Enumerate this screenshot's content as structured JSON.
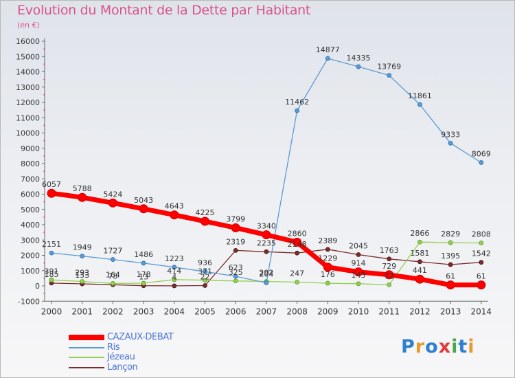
{
  "title": "Evolution du Montant de la Dette par Habitant",
  "subtitle": "(en €)",
  "logo": {
    "letters": [
      "P",
      "r",
      "o",
      "x",
      "i",
      "t",
      "i"
    ],
    "colors": [
      "#2f7fd0",
      "#e79a2b",
      "#2f7fd0",
      "#e03a3a",
      "#4aa84a",
      "#2f7fd0",
      "#e79a2b"
    ]
  },
  "chart_data": {
    "type": "line",
    "title": "Evolution du Montant de la Dette par Habitant",
    "subtitle": "(en €)",
    "xlabel": "",
    "ylabel": "",
    "ylim": [
      -1000,
      16000
    ],
    "yticks": [
      -1000,
      0,
      1000,
      2000,
      3000,
      4000,
      5000,
      6000,
      7000,
      8000,
      9000,
      10000,
      11000,
      12000,
      13000,
      14000,
      15000,
      16000
    ],
    "grid": false,
    "legend": "bottom-left",
    "x": [
      "2000",
      "2001",
      "2002",
      "2003",
      "2004",
      "2005",
      "2006",
      "2007",
      "2008",
      "2009",
      "2010",
      "2011",
      "2012",
      "2013",
      "2014"
    ],
    "series": [
      {
        "name": "CAZAUX-DEBAT",
        "color": "#ff0000",
        "values": [
          6057,
          5788,
          5424,
          5043,
          4643,
          4225,
          3799,
          3340,
          2860,
          1229,
          914,
          729,
          441,
          61,
          61
        ]
      },
      {
        "name": "Ris",
        "color": "#5b9bd5",
        "values": [
          2151,
          1949,
          1727,
          1486,
          1223,
          936,
          623,
          204,
          11462,
          14877,
          14335,
          13769,
          11861,
          9333,
          8069
        ]
      },
      {
        "name": "Jézeau",
        "color": "#92d050",
        "values": [
          391,
          293,
          164,
          178,
          414,
          371,
          325,
          292,
          247,
          176,
          143,
          72,
          2866,
          2829,
          2808
        ]
      },
      {
        "name": "Lançon",
        "color": "#7b2c2c",
        "values": [
          185,
          133,
          78,
          13,
          4,
          22,
          2319,
          2235,
          2148,
          2389,
          2045,
          1763,
          1581,
          1395,
          1542
        ]
      }
    ]
  }
}
